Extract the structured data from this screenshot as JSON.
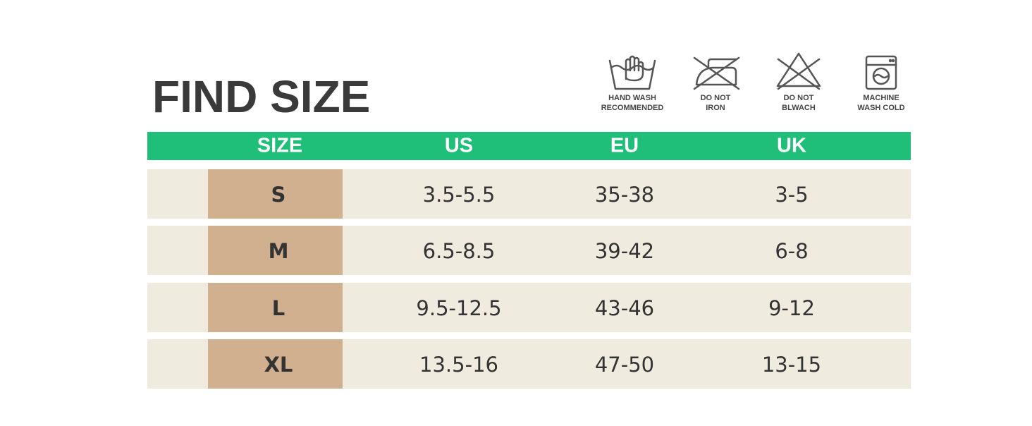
{
  "header": {
    "title": "FIND SIZE"
  },
  "care_icons": [
    {
      "lines": [
        "HAND WASH",
        "RECOMMENDED"
      ]
    },
    {
      "lines": [
        "DO NOT",
        "IRON"
      ]
    },
    {
      "lines": [
        "DO NOT",
        "BLWACH"
      ]
    },
    {
      "lines": [
        "MACHINE",
        "WASH COLD"
      ]
    }
  ],
  "table": {
    "columns": [
      "SIZE",
      "US",
      "EU",
      "UK"
    ],
    "rows": [
      [
        "S",
        "3.5-5.5",
        "35-38",
        "3-5"
      ],
      [
        "M",
        "6.5-8.5",
        "39-42",
        "6-8"
      ],
      [
        "L",
        "9.5-12.5",
        "43-46",
        "9-12"
      ],
      [
        "XL",
        "13.5-16",
        "47-50",
        "13-15"
      ]
    ]
  }
}
